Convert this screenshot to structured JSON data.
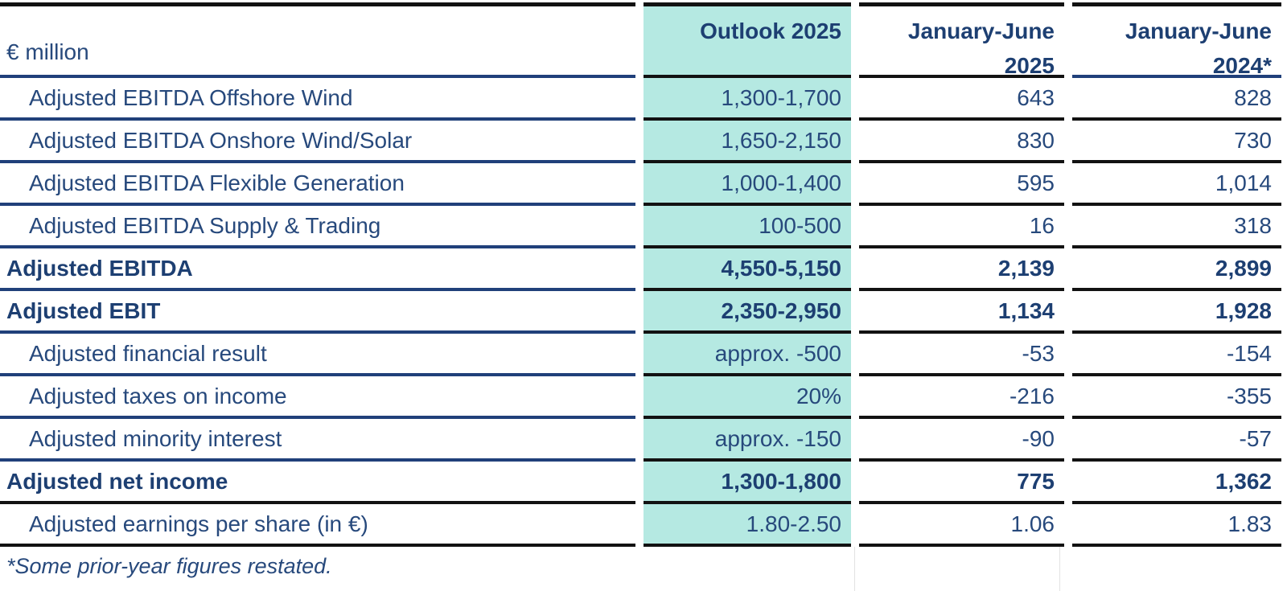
{
  "table": {
    "unit_label": "€ million",
    "header": {
      "outlook": "Outlook 2025",
      "jan_jun_2025": "January-June\n2025",
      "jan_jun_2024": "January-June\n2024*"
    },
    "rows": [
      {
        "label": "Adjusted EBITDA Offshore Wind",
        "outlook": "1,300-1,700",
        "jan_jun_2025": "643",
        "jan_jun_2024": "828"
      },
      {
        "label": "Adjusted EBITDA Onshore Wind/Solar",
        "outlook": "1,650-2,150",
        "jan_jun_2025": "830",
        "jan_jun_2024": "730"
      },
      {
        "label": "Adjusted EBITDA Flexible Generation",
        "outlook": "1,000-1,400",
        "jan_jun_2025": "595",
        "jan_jun_2024": "1,014"
      },
      {
        "label": "Adjusted EBITDA Supply & Trading",
        "outlook": "100-500",
        "jan_jun_2025": "16",
        "jan_jun_2024": "318"
      },
      {
        "label": "Adjusted EBITDA",
        "outlook": "4,550-5,150",
        "jan_jun_2025": "2,139",
        "jan_jun_2024": "2,899"
      },
      {
        "label": "Adjusted EBIT",
        "outlook": "2,350-2,950",
        "jan_jun_2025": "1,134",
        "jan_jun_2024": "1,928"
      },
      {
        "label": "Adjusted financial result",
        "outlook": "approx. -500",
        "jan_jun_2025": "-53",
        "jan_jun_2024": "-154"
      },
      {
        "label": "Adjusted taxes on income",
        "outlook": "20%",
        "jan_jun_2025": "-216",
        "jan_jun_2024": "-355"
      },
      {
        "label": "Adjusted minority interest",
        "outlook": "approx. -150",
        "jan_jun_2025": "-90",
        "jan_jun_2024": "-57"
      },
      {
        "label": "Adjusted net income",
        "outlook": "1,300-1,800",
        "jan_jun_2025": "775",
        "jan_jun_2024": "1,362"
      },
      {
        "label": "Adjusted earnings per share (in €)",
        "outlook": "1.80-2.50",
        "jan_jun_2025": "1.06",
        "jan_jun_2024": "1.83"
      }
    ],
    "footnote": "*Some prior-year figures restated.",
    "colors": {
      "highlight_teal": "#b5e9e2",
      "text_navy": "#27497c",
      "text_bold_navy": "#1d3f72",
      "line_navy": "#20407a",
      "line_black": "#121212"
    }
  }
}
